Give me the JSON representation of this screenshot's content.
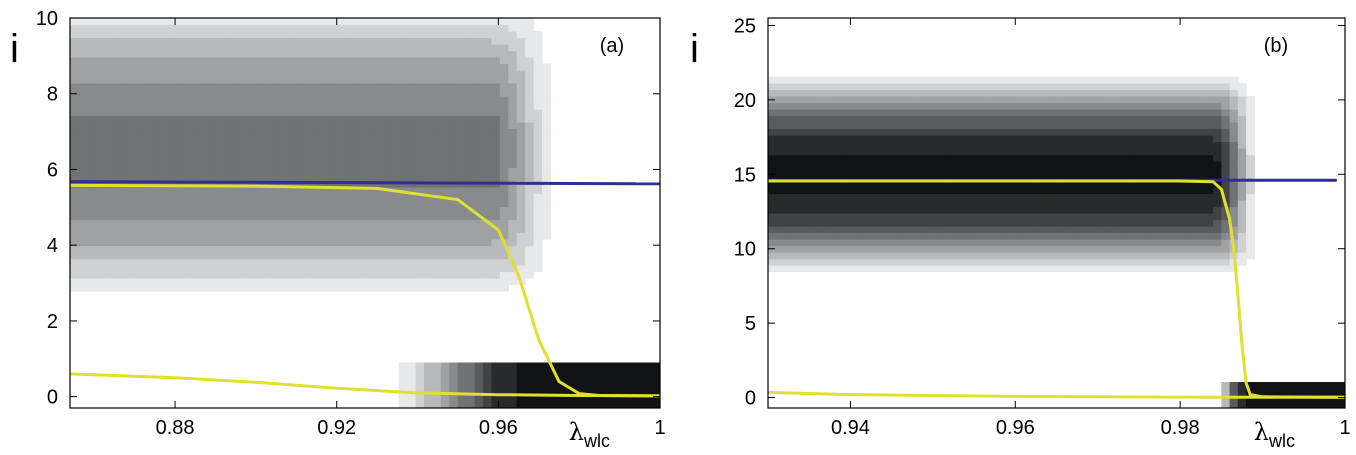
{
  "chart_data": [
    {
      "type": "heatmap",
      "panel_label": "(a)",
      "ylabel": "i",
      "xlabel": "λ",
      "xlabel_sub": "wlc",
      "xlim": [
        0.854,
        1.0
      ],
      "ylim": [
        -0.3,
        10.0
      ],
      "x_ticks": [
        0.88,
        0.92,
        0.96,
        1.0
      ],
      "x_tick_labels": [
        "0.88",
        "0.92",
        "0.96",
        "1"
      ],
      "y_ticks": [
        0,
        2,
        4,
        6,
        8,
        10
      ],
      "y_tick_labels": [
        "0",
        "2",
        "4",
        "6",
        "8",
        "10"
      ],
      "density": {
        "upper_center": 6.5,
        "upper_halfwidth": 3.7,
        "upper_max_shade": 0.55,
        "upper_edge": [
          0.958,
          0.976
        ],
        "lower_halfwidth": 0.85,
        "lower_start": 0.93,
        "lower_full": 0.968
      },
      "lines": [
        {
          "color": "#2f2f8f",
          "x": [
            0.854,
            1.0
          ],
          "y": [
            5.68,
            5.62
          ]
        },
        {
          "color": "#e0e030",
          "x": [
            0.854,
            0.9,
            0.93,
            0.95,
            0.96,
            0.965,
            0.97,
            0.975,
            0.98,
            0.985,
            1.0
          ],
          "y": [
            5.58,
            5.56,
            5.5,
            5.2,
            4.4,
            3.2,
            1.5,
            0.4,
            0.08,
            0.03,
            0.02
          ]
        },
        {
          "color": "#e0e030",
          "x": [
            0.854,
            0.88,
            0.9,
            0.92,
            0.94,
            0.96,
            0.98,
            1.0
          ],
          "y": [
            0.6,
            0.5,
            0.38,
            0.22,
            0.1,
            0.05,
            0.03,
            0.02
          ]
        }
      ]
    },
    {
      "type": "heatmap",
      "panel_label": "(b)",
      "ylabel": "i",
      "xlabel": "λ",
      "xlabel_sub": "wlc",
      "xlim": [
        0.93,
        1.0
      ],
      "ylim": [
        -0.7,
        25.5
      ],
      "x_ticks": [
        0.94,
        0.96,
        0.98,
        1.0
      ],
      "x_tick_labels": [
        "0.94",
        "0.96",
        "0.98",
        "1"
      ],
      "y_ticks": [
        0,
        5,
        10,
        15,
        20,
        25
      ],
      "y_tick_labels": [
        "0",
        "5",
        "10",
        "15",
        "20",
        "25"
      ],
      "density": {
        "upper_center": 15.0,
        "upper_halfwidth": 6.5,
        "upper_max_shade": 0.95,
        "upper_edge": [
          0.984,
          0.99
        ],
        "lower_halfwidth": 1.1,
        "lower_start": 0.984,
        "lower_full": 0.988
      },
      "lines": [
        {
          "color": "#2f2f8f",
          "x": [
            0.93,
            0.999
          ],
          "y": [
            14.6,
            14.6
          ]
        },
        {
          "color": "#e0e030",
          "x": [
            0.93,
            0.96,
            0.98,
            0.984,
            0.985,
            0.986,
            0.9865,
            0.987,
            0.9875,
            0.988,
            0.9885,
            0.99,
            1.0
          ],
          "y": [
            14.55,
            14.55,
            14.55,
            14.5,
            14.0,
            12.0,
            10.0,
            7.0,
            3.5,
            1.0,
            0.2,
            0.05,
            0.02
          ]
        },
        {
          "color": "#e0e030",
          "x": [
            0.93,
            0.94,
            0.96,
            0.98,
            1.0
          ],
          "y": [
            0.35,
            0.2,
            0.08,
            0.03,
            0.02
          ]
        }
      ]
    }
  ]
}
